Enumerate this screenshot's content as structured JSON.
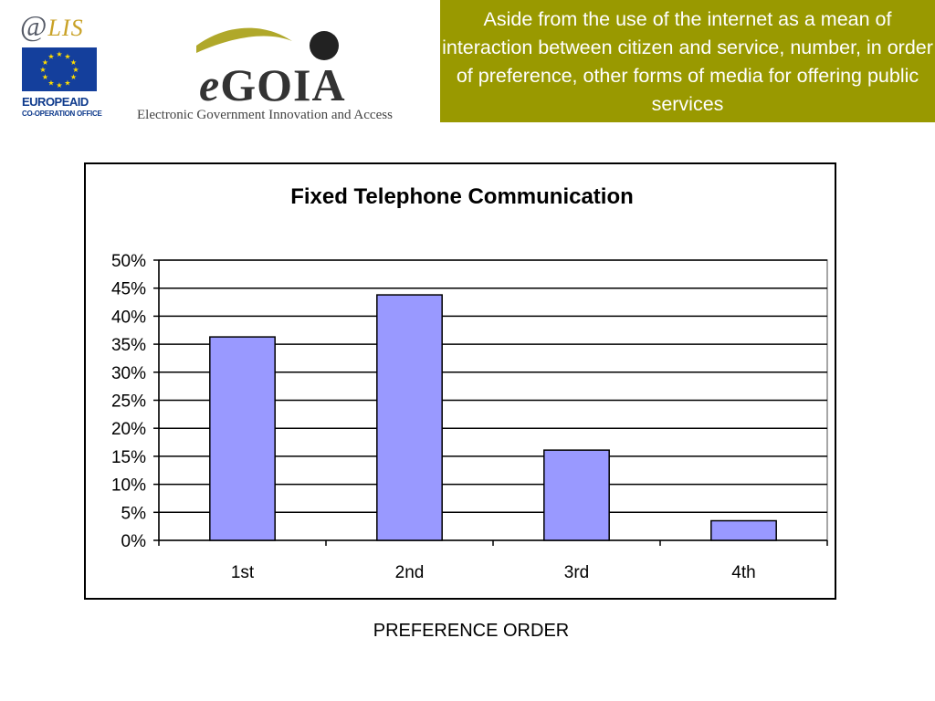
{
  "logos": {
    "alis": {
      "text_at": "@",
      "text_lis": "LIS",
      "eu_name": "EUROPEAID",
      "eu_sub": "CO-OPERATION OFFICE"
    },
    "egoia": {
      "e": "e",
      "word": "GOIA",
      "subtitle": "Electronic Government Innovation and Access"
    }
  },
  "header": {
    "text": "Aside from the use of the internet as a mean of interaction between citizen and service, number, in order of preference, other forms of media for offering public services",
    "background": "#999900"
  },
  "chart_data": {
    "type": "bar",
    "title": "Fixed Telephone Communication",
    "categories": [
      "1st",
      "2nd",
      "3rd",
      "4th"
    ],
    "values": [
      36.3,
      43.8,
      16.1,
      3.5
    ],
    "xlabel": "PREFERENCE ORDER",
    "ylabel": "",
    "ylim": [
      0,
      50
    ],
    "y_ticks": [
      "0%",
      "5%",
      "10%",
      "15%",
      "20%",
      "25%",
      "30%",
      "35%",
      "40%",
      "45%",
      "50%"
    ],
    "bar_color": "#9999ff",
    "grid": true
  }
}
